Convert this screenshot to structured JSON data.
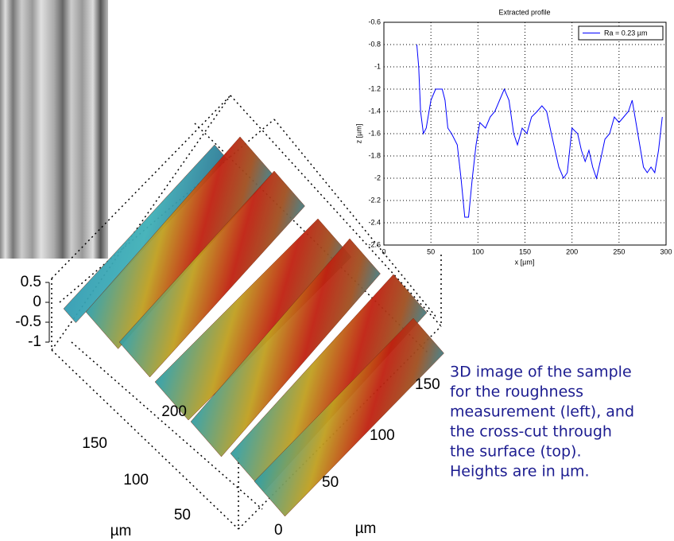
{
  "chart_data": {
    "type": "line",
    "title": "Extracted profile",
    "x_label": "x [µm]",
    "y_label": "z [µm]",
    "xlim": [
      0,
      300
    ],
    "xticks": [
      0,
      50,
      100,
      150,
      200,
      250,
      300
    ],
    "ylim": [
      -2.6,
      -0.6
    ],
    "yticks": [
      -0.6,
      -0.8,
      -1,
      -1.2,
      -1.4,
      -1.6,
      -1.8,
      -2,
      -2.2,
      -2.4,
      -2.6
    ],
    "grid": true,
    "legend": "upper right",
    "x": [
      35,
      37,
      39,
      42,
      45,
      50,
      55,
      62,
      65,
      68,
      72,
      78,
      82,
      86,
      90,
      94,
      98,
      102,
      108,
      113,
      118,
      123,
      128,
      133,
      138,
      142,
      147,
      152,
      157,
      163,
      168,
      173,
      178,
      182,
      186,
      191,
      195,
      200,
      206,
      210,
      214,
      218,
      222,
      226,
      230,
      235,
      240,
      245,
      250,
      255,
      260,
      264,
      268,
      272,
      276,
      280,
      284,
      288,
      292,
      296
    ],
    "series": [
      {
        "name": "Ra = 0.23 µm",
        "color": "#0000ff",
        "values": [
          -0.8,
          -1.0,
          -1.4,
          -1.6,
          -1.55,
          -1.3,
          -1.2,
          -1.2,
          -1.3,
          -1.55,
          -1.6,
          -1.7,
          -2.0,
          -2.35,
          -2.35,
          -2.0,
          -1.7,
          -1.5,
          -1.55,
          -1.45,
          -1.4,
          -1.3,
          -1.2,
          -1.3,
          -1.6,
          -1.7,
          -1.55,
          -1.6,
          -1.45,
          -1.4,
          -1.35,
          -1.4,
          -1.6,
          -1.75,
          -1.9,
          -2.0,
          -1.95,
          -1.55,
          -1.6,
          -1.75,
          -1.85,
          -1.75,
          -1.9,
          -2.0,
          -1.85,
          -1.65,
          -1.6,
          -1.45,
          -1.5,
          -1.45,
          -1.4,
          -1.3,
          -1.5,
          -1.7,
          -1.9,
          -1.95,
          -1.9,
          -1.95,
          -1.75,
          -1.45
        ]
      }
    ]
  },
  "surface_3d": {
    "z_ticks": [
      0.5,
      0,
      -0.5,
      -1
    ],
    "left_ticks": [
      200,
      150,
      100,
      50
    ],
    "left_unit": "µm",
    "right_ticks": [
      150,
      100,
      50,
      0
    ],
    "right_unit": "µm"
  },
  "caption": [
    "3D image of the sample",
    "for the roughness",
    "measurement (left), and",
    "the cross-cut through",
    "the surface (top).",
    "Heights are in µm."
  ]
}
